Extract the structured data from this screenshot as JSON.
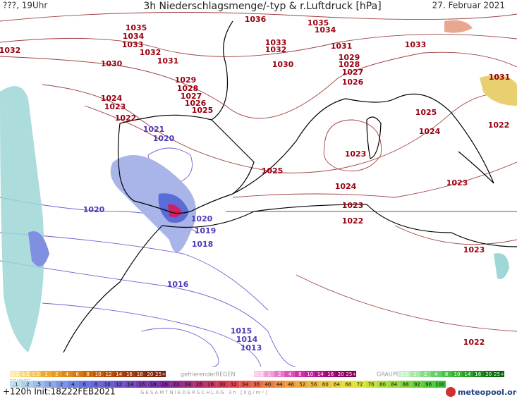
{
  "header": {
    "left": "???, 19Uhr",
    "title": "3h Niederschlagsmenge/-typ & r.Luftdruck [hPa]",
    "date": "27. Februar 2021"
  },
  "isobar_labels": [
    1036,
    1035,
    1034,
    1033,
    1032,
    1032,
    1031,
    1030,
    1035,
    1034,
    1033,
    1032,
    1031,
    1030,
    1033,
    1029,
    1028,
    1027,
    1026,
    1031,
    1029,
    1028,
    1027,
    1026,
    1025,
    1024,
    1023,
    1022,
    1025,
    1024,
    1022,
    1021,
    1020,
    1023,
    1025,
    1024,
    1023,
    1023,
    1022,
    1020,
    1020,
    1019,
    1018,
    1016,
    1023,
    1015,
    1014,
    1013,
    1022
  ],
  "legend": {
    "snow_title": "SCHNEE",
    "snow_scale": [
      "0.1",
      "0.2",
      "0.5",
      "1",
      "2",
      "4",
      "6",
      "8",
      "10",
      "12",
      "14",
      "16",
      "18",
      "20",
      "25+"
    ],
    "freezing_rain_title": "gefrierenderREGEN",
    "freezing_rain_scale": [
      "0.1",
      "1",
      "2",
      "4",
      "8",
      "10",
      "14",
      "16",
      "20",
      "25+"
    ],
    "graupel_title": "GRAUPEL",
    "graupel_scale": [
      "0.1",
      "1",
      "2",
      "4",
      "8",
      "10",
      "14",
      "16",
      "20",
      "25+"
    ],
    "total_scale": [
      ".1",
      ".2",
      ".5",
      "1",
      "2",
      "4",
      "6",
      "8",
      "10",
      "12",
      "14",
      "16",
      "18",
      "20",
      "22",
      "24",
      "26",
      "28",
      "30",
      "32",
      "34",
      "36",
      "40",
      "44",
      "48",
      "52",
      "56",
      "60",
      "64",
      "68",
      "72",
      "76",
      "80",
      "84",
      "88",
      "92",
      "96",
      "100"
    ],
    "total_title": "GESAMTNIEDERSCHLAG 3h [kg/m²]"
  },
  "footer": {
    "run": "+120h  Init:18Z22FEB2021",
    "brand": "meteopool.org"
  }
}
